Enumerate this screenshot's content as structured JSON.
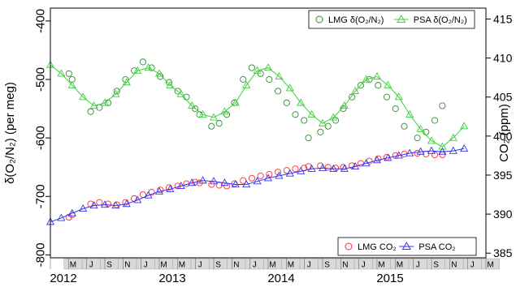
{
  "chart_data": {
    "type": "scatter",
    "ylabel_left": "δ(O₂/N₂) (per meg)",
    "ylabel_right": "CO₂ (ppm)",
    "y_left_range": [
      -805,
      -378
    ],
    "y_left_ticks": [
      -800,
      -700,
      -600,
      -500,
      -400
    ],
    "y_right_range": [
      384.4,
      416.4
    ],
    "y_right_ticks": [
      385,
      390,
      395,
      400,
      405,
      410,
      415
    ],
    "x_range": [
      2012.0,
      2016.0
    ],
    "year_labels": [
      "2012",
      "2013",
      "2014",
      "2015"
    ],
    "month_tick_labels": [
      "M",
      "J",
      "S",
      "N",
      "J",
      "M",
      "M",
      "J",
      "S",
      "N",
      "J",
      "M",
      "M",
      "J",
      "S",
      "N",
      "J",
      "M",
      "M",
      "J",
      "S",
      "N",
      "J",
      "M"
    ],
    "legend_top": {
      "position": "top-right",
      "entries": [
        {
          "label": "LMG δ(O₂/N₂)",
          "marker": "circle",
          "color": "#2e8b2e"
        },
        {
          "label": "PSA δ(O₂/N₂)",
          "marker": "triangle",
          "color": "#3ecf3e"
        }
      ]
    },
    "legend_bottom": {
      "position": "bottom-right",
      "entries": [
        {
          "label": "LMG CO₂",
          "marker": "circle",
          "color": "#ff2a2a"
        },
        {
          "label": "PSA CO₂",
          "marker": "triangle",
          "color": "#3535ee"
        }
      ]
    },
    "series": [
      {
        "name": "LMG δ(O₂/N₂)",
        "axis": "left",
        "x": [
          2012.17,
          2012.2,
          2012.37,
          2012.45,
          2012.53,
          2012.61,
          2012.69,
          2012.77,
          2012.85,
          2012.93,
          2013.01,
          2013.09,
          2013.17,
          2013.25,
          2013.33,
          2013.37,
          2013.48,
          2013.55,
          2013.62,
          2013.69,
          2013.77,
          2013.85,
          2013.93,
          2014.01,
          2014.09,
          2014.17,
          2014.25,
          2014.33,
          2014.37,
          2014.48,
          2014.55,
          2014.62,
          2014.69,
          2014.77,
          2014.85,
          2014.93,
          2015.01,
          2015.09,
          2015.17,
          2015.25,
          2015.37,
          2015.45,
          2015.53,
          2015.6
        ],
        "y": [
          -490,
          -500,
          -555,
          -548,
          -540,
          -520,
          -500,
          -485,
          -470,
          -480,
          -495,
          -505,
          -520,
          -530,
          -550,
          -560,
          -580,
          -575,
          -560,
          -540,
          -500,
          -480,
          -490,
          -500,
          -520,
          -540,
          -560,
          -570,
          -600,
          -590,
          -580,
          -570,
          -550,
          -530,
          -510,
          -500,
          -510,
          -530,
          -550,
          -580,
          -600,
          -590,
          -570,
          -545
        ]
      },
      {
        "name": "PSA δ(O₂/N₂)",
        "axis": "left",
        "x": [
          2012.0,
          2012.1,
          2012.2,
          2012.3,
          2012.4,
          2012.5,
          2012.6,
          2012.7,
          2012.8,
          2012.9,
          2013.0,
          2013.1,
          2013.2,
          2013.3,
          2013.4,
          2013.5,
          2013.6,
          2013.7,
          2013.8,
          2013.9,
          2014.0,
          2014.1,
          2014.2,
          2014.3,
          2014.4,
          2014.5,
          2014.6,
          2014.7,
          2014.8,
          2014.9,
          2015.0,
          2015.1,
          2015.2,
          2015.3,
          2015.4,
          2015.5,
          2015.6,
          2015.7,
          2015.8
        ],
        "y": [
          -475,
          -490,
          -510,
          -530,
          -545,
          -540,
          -525,
          -505,
          -485,
          -480,
          -490,
          -510,
          -525,
          -545,
          -560,
          -565,
          -555,
          -540,
          -510,
          -485,
          -480,
          -495,
          -515,
          -540,
          -560,
          -575,
          -565,
          -545,
          -520,
          -500,
          -495,
          -510,
          -530,
          -560,
          -585,
          -605,
          -615,
          -600,
          -580
        ]
      },
      {
        "name": "LMG CO₂",
        "axis": "right",
        "x": [
          2012.17,
          2012.2,
          2012.37,
          2012.45,
          2012.53,
          2012.61,
          2012.69,
          2012.77,
          2012.85,
          2012.93,
          2013.01,
          2013.09,
          2013.17,
          2013.25,
          2013.33,
          2013.37,
          2013.48,
          2013.55,
          2013.62,
          2013.69,
          2013.77,
          2013.85,
          2013.93,
          2014.01,
          2014.09,
          2014.17,
          2014.25,
          2014.33,
          2014.37,
          2014.48,
          2014.55,
          2014.62,
          2014.69,
          2014.77,
          2014.85,
          2014.93,
          2015.01,
          2015.09,
          2015.17,
          2015.25,
          2015.37,
          2015.45,
          2015.53,
          2015.6
        ],
        "y": [
          389.6,
          389.9,
          391.3,
          391.5,
          391.3,
          391.2,
          391.5,
          392.0,
          392.5,
          392.8,
          393.1,
          393.4,
          393.6,
          393.9,
          394.1,
          394.0,
          393.8,
          393.7,
          393.6,
          393.9,
          394.3,
          394.6,
          394.9,
          395.1,
          395.4,
          395.6,
          395.8,
          395.9,
          396.1,
          396.2,
          396.0,
          395.9,
          396.0,
          396.2,
          396.5,
          396.8,
          397.1,
          397.3,
          397.5,
          397.7,
          397.8,
          397.7,
          397.6,
          397.6
        ]
      },
      {
        "name": "PSA CO₂",
        "axis": "right",
        "x": [
          2012.0,
          2012.1,
          2012.2,
          2012.3,
          2012.4,
          2012.5,
          2012.6,
          2012.7,
          2012.8,
          2012.9,
          2013.0,
          2013.1,
          2013.2,
          2013.3,
          2013.4,
          2013.5,
          2013.6,
          2013.7,
          2013.8,
          2013.9,
          2014.0,
          2014.1,
          2014.2,
          2014.3,
          2014.4,
          2014.5,
          2014.6,
          2014.7,
          2014.8,
          2014.9,
          2015.0,
          2015.1,
          2015.2,
          2015.3,
          2015.4,
          2015.5,
          2015.6,
          2015.7,
          2015.8
        ],
        "y": [
          389.0,
          389.5,
          390.1,
          390.7,
          391.1,
          391.2,
          391.1,
          391.3,
          391.8,
          392.4,
          392.9,
          393.2,
          393.6,
          394.0,
          394.3,
          394.2,
          394.0,
          393.8,
          393.8,
          394.2,
          394.6,
          394.9,
          395.2,
          395.5,
          395.8,
          395.9,
          395.8,
          395.8,
          396.1,
          396.5,
          396.9,
          397.2,
          397.5,
          397.8,
          398.0,
          398.1,
          398.0,
          398.1,
          398.4
        ]
      }
    ],
    "grid": false,
    "colors": {
      "lmg_o2": "#2e8b2e",
      "psa_o2": "#3ecf3e",
      "lmg_co2": "#ff2a2a",
      "psa_co2": "#3535ee",
      "tick_label_box": "#d9d9d9"
    }
  }
}
